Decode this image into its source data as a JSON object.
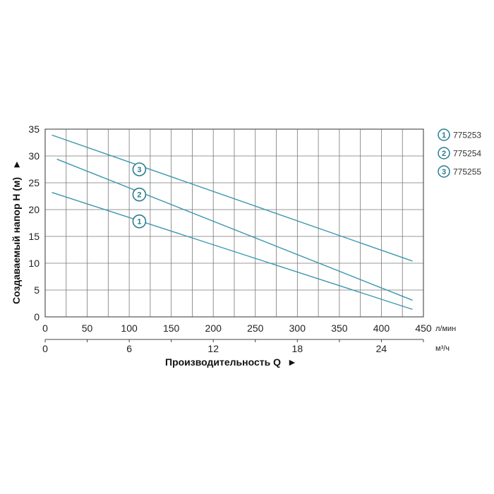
{
  "chart_data": {
    "type": "line",
    "xlabel": "Производительность Q",
    "xlabel_arrow": "►",
    "ylabel": "Создаваемый напор H (м)",
    "ylabel_arrow": "►",
    "x_unit": "л/мин",
    "x2_unit": "м³/ч",
    "xlim": [
      0,
      450
    ],
    "ylim": [
      0,
      35
    ],
    "x_ticks": [
      0,
      50,
      100,
      150,
      200,
      250,
      300,
      350,
      400,
      450
    ],
    "y_ticks": [
      0,
      5,
      10,
      15,
      20,
      25,
      30,
      35
    ],
    "x2_ticks": [
      {
        "label": "0",
        "x": 0
      },
      {
        "label": "6",
        "x": 100
      },
      {
        "label": "12",
        "x": 200
      },
      {
        "label": "18",
        "x": 300
      },
      {
        "label": "24",
        "x": 400
      }
    ],
    "grid": true,
    "grid_x_step": 25,
    "grid_y_step": 5,
    "line_color": "#3a97ad",
    "series": [
      {
        "name": "775253",
        "marker": "1",
        "x": [
          8,
          437
        ],
        "y": [
          23.2,
          1.4
        ],
        "marker_x": 112,
        "marker_y": 17.8
      },
      {
        "name": "775254",
        "marker": "2",
        "x": [
          14,
          437
        ],
        "y": [
          29.4,
          3.1
        ],
        "marker_x": 112,
        "marker_y": 22.8
      },
      {
        "name": "775255",
        "marker": "3",
        "x": [
          8,
          437
        ],
        "y": [
          33.9,
          10.4
        ],
        "marker_x": 112,
        "marker_y": 27.5
      }
    ],
    "legend_position": "right"
  }
}
